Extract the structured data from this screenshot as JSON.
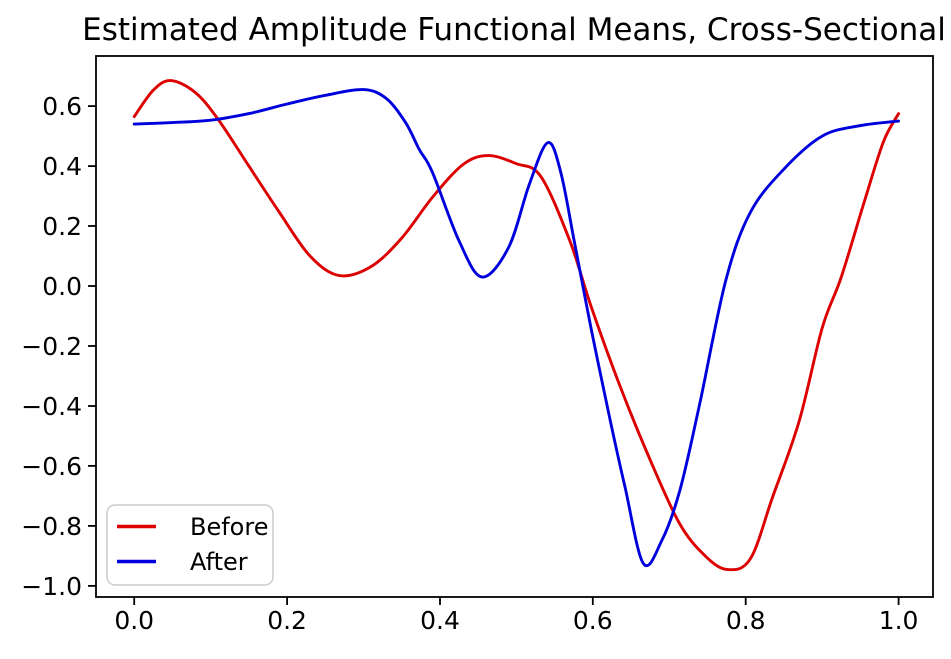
{
  "chart_data": {
    "type": "line",
    "title": "Estimated Amplitude Functional Means, Cross-Sectional",
    "xlabel": "",
    "ylabel": "",
    "xlim": [
      -0.05,
      1.045
    ],
    "ylim": [
      -1.037,
      0.767
    ],
    "grid": false,
    "x_ticks": {
      "values": [
        0.0,
        0.2,
        0.4,
        0.6,
        0.8,
        1.0
      ],
      "labels": [
        "0.0",
        "0.2",
        "0.4",
        "0.6",
        "0.8",
        "1.0"
      ]
    },
    "y_ticks": {
      "values": [
        0.6,
        0.4,
        0.2,
        0.0,
        -0.2,
        -0.4,
        -0.6,
        -0.8,
        -1.0
      ],
      "labels": [
        "0.6",
        "0.4",
        "0.2",
        "0.0",
        "−0.2",
        "−0.4",
        "−0.6",
        "−0.8",
        "−1.0"
      ]
    },
    "legend": {
      "position": "lower-left",
      "entries": [
        {
          "label": "Before",
          "color": "#dd0000"
        },
        {
          "label": "After",
          "color": "#0000dd"
        }
      ]
    },
    "series": [
      {
        "name": "Before",
        "color": "#dd0000",
        "points": [
          [
            0.0,
            0.565
          ],
          [
            0.025,
            0.653
          ],
          [
            0.048,
            0.685
          ],
          [
            0.08,
            0.645
          ],
          [
            0.11,
            0.555
          ],
          [
            0.15,
            0.4
          ],
          [
            0.19,
            0.245
          ],
          [
            0.23,
            0.1
          ],
          [
            0.268,
            0.035
          ],
          [
            0.31,
            0.065
          ],
          [
            0.35,
            0.16
          ],
          [
            0.39,
            0.295
          ],
          [
            0.43,
            0.405
          ],
          [
            0.463,
            0.435
          ],
          [
            0.5,
            0.408
          ],
          [
            0.532,
            0.365
          ],
          [
            0.57,
            0.15
          ],
          [
            0.598,
            -0.07
          ],
          [
            0.635,
            -0.33
          ],
          [
            0.675,
            -0.58
          ],
          [
            0.713,
            -0.79
          ],
          [
            0.745,
            -0.895
          ],
          [
            0.775,
            -0.945
          ],
          [
            0.806,
            -0.91
          ],
          [
            0.835,
            -0.705
          ],
          [
            0.87,
            -0.45
          ],
          [
            0.9,
            -0.14
          ],
          [
            0.925,
            0.03
          ],
          [
            0.955,
            0.28
          ],
          [
            0.98,
            0.48
          ],
          [
            1.0,
            0.575
          ]
        ]
      },
      {
        "name": "After",
        "color": "#0000dd",
        "points": [
          [
            0.0,
            0.54
          ],
          [
            0.05,
            0.545
          ],
          [
            0.1,
            0.553
          ],
          [
            0.15,
            0.575
          ],
          [
            0.2,
            0.607
          ],
          [
            0.25,
            0.636
          ],
          [
            0.3,
            0.655
          ],
          [
            0.33,
            0.625
          ],
          [
            0.355,
            0.545
          ],
          [
            0.373,
            0.455
          ],
          [
            0.39,
            0.38
          ],
          [
            0.425,
            0.15
          ],
          [
            0.455,
            0.03
          ],
          [
            0.49,
            0.13
          ],
          [
            0.517,
            0.34
          ],
          [
            0.541,
            0.478
          ],
          [
            0.558,
            0.38
          ],
          [
            0.576,
            0.145
          ],
          [
            0.598,
            -0.145
          ],
          [
            0.622,
            -0.44
          ],
          [
            0.642,
            -0.67
          ],
          [
            0.666,
            -0.925
          ],
          [
            0.69,
            -0.85
          ],
          [
            0.714,
            -0.68
          ],
          [
            0.74,
            -0.39
          ],
          [
            0.774,
            0.02
          ],
          [
            0.806,
            0.245
          ],
          [
            0.85,
            0.39
          ],
          [
            0.9,
            0.5
          ],
          [
            0.95,
            0.535
          ],
          [
            1.0,
            0.55
          ]
        ]
      }
    ]
  },
  "styles": {
    "background": "#ffffff",
    "text_color": "#000000",
    "spine_color": "#000000",
    "legend_border": "#cccccc",
    "legend_background": "#ffffff"
  }
}
